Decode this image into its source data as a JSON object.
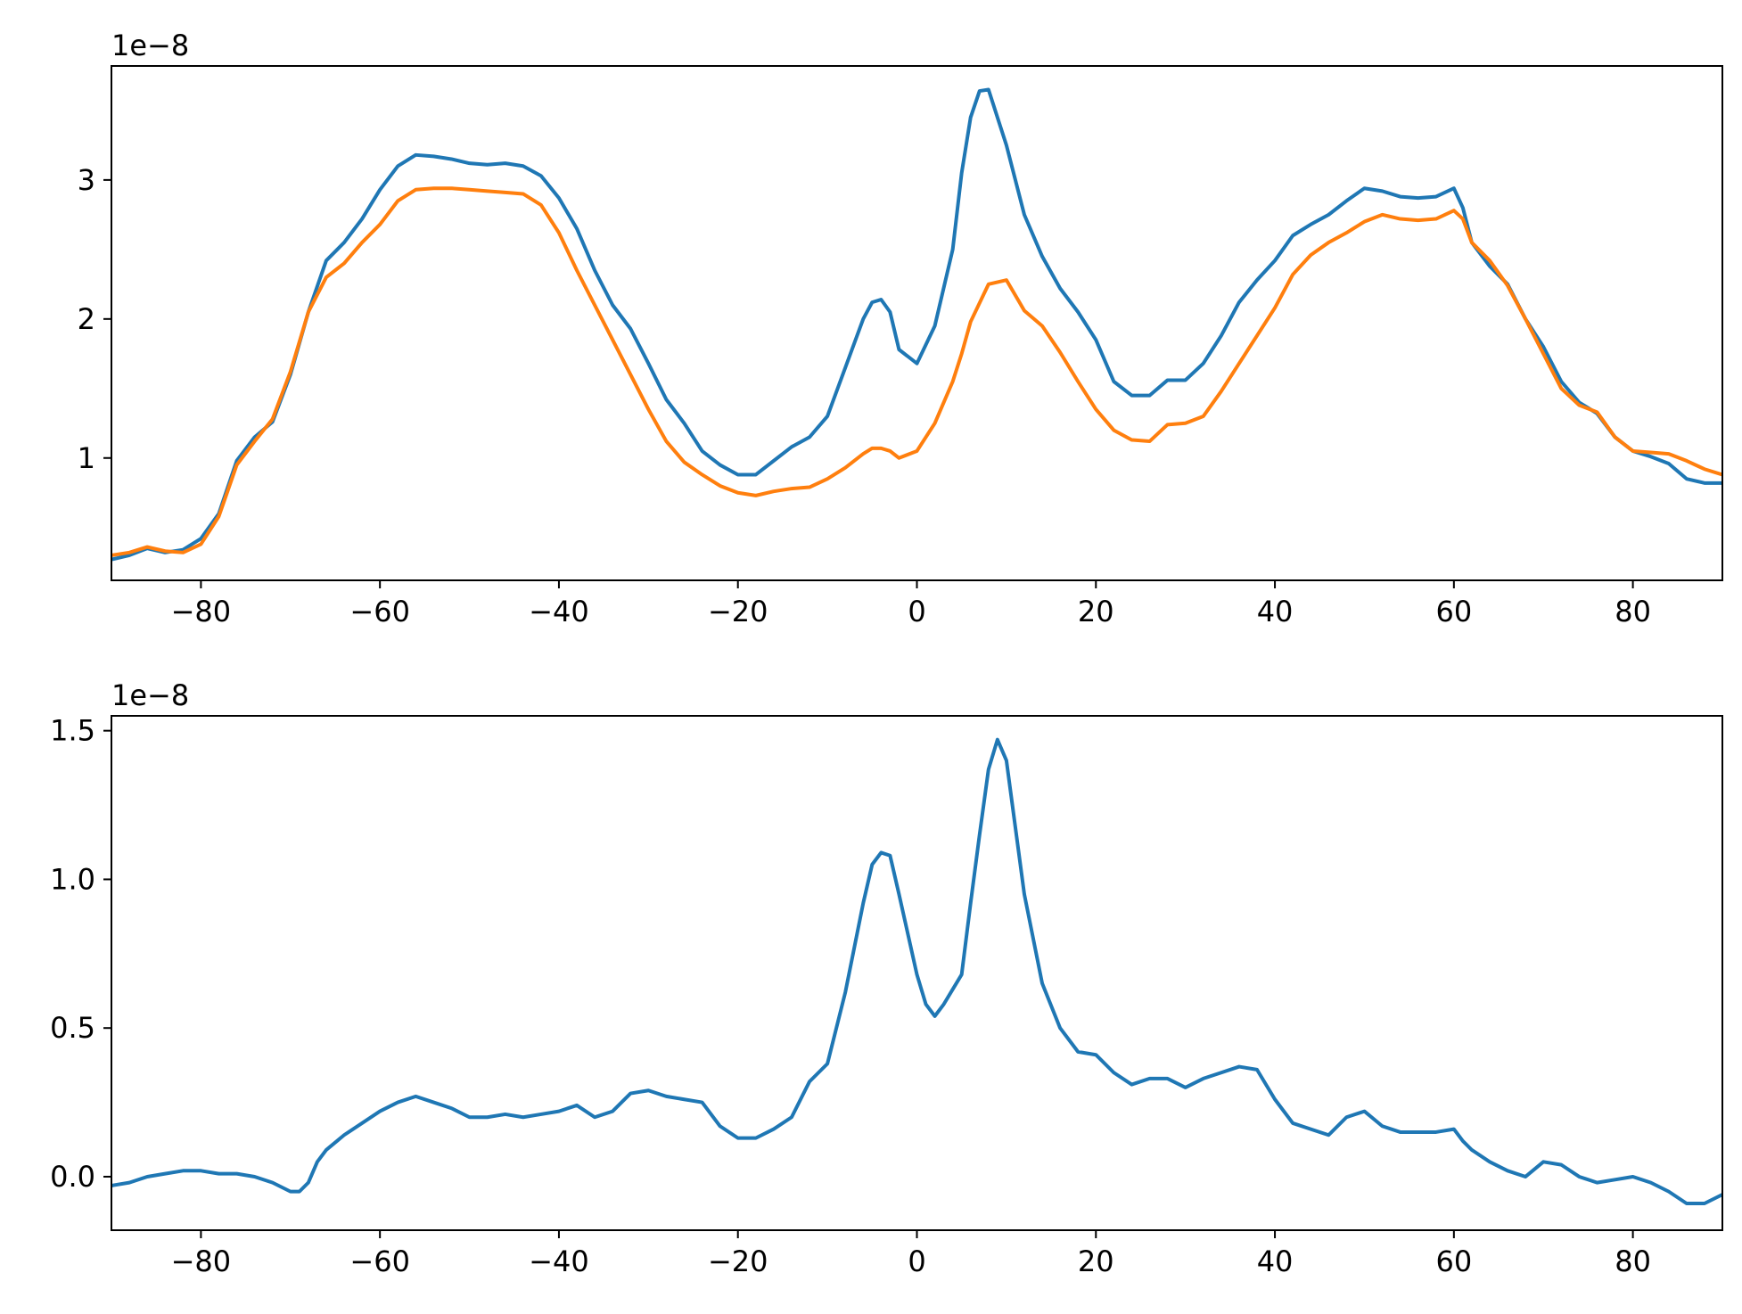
{
  "chart_data": [
    {
      "type": "line",
      "title": "",
      "xlabel": "",
      "ylabel": "",
      "y_offset_text": "1e−8",
      "y_scale": 1e-08,
      "xlim": [
        -90,
        90
      ],
      "ylim": [
        0.12,
        3.82
      ],
      "x_ticks": [
        -80,
        -60,
        -40,
        -20,
        0,
        20,
        40,
        60,
        80
      ],
      "x_tick_labels": [
        "−80",
        "−60",
        "−40",
        "−20",
        "0",
        "20",
        "40",
        "60",
        "80"
      ],
      "y_ticks": [
        1,
        2,
        3
      ],
      "y_tick_labels": [
        "1",
        "2",
        "3"
      ],
      "grid": false,
      "legend": "none",
      "colors": [
        "#1f77b4",
        "#ff7f0e"
      ],
      "series": [
        {
          "x": [
            -90,
            -88,
            -86,
            -84,
            -82,
            -80,
            -78,
            -76,
            -74,
            -72,
            -70,
            -68,
            -66,
            -64,
            -62,
            -60,
            -58,
            -56,
            -54,
            -52,
            -50,
            -48,
            -46,
            -44,
            -42,
            -40,
            -38,
            -36,
            -34,
            -32,
            -30,
            -28,
            -26,
            -24,
            -22,
            -20,
            -18,
            -16,
            -14,
            -12,
            -10,
            -8,
            -6,
            -5,
            -4,
            -3,
            -2,
            0,
            2,
            4,
            5,
            6,
            7,
            8,
            9,
            10,
            12,
            14,
            16,
            18,
            20,
            22,
            24,
            26,
            28,
            30,
            32,
            34,
            36,
            38,
            40,
            42,
            44,
            46,
            48,
            50,
            52,
            54,
            56,
            58,
            60,
            61,
            62,
            64,
            66,
            68,
            70,
            72,
            74,
            76,
            78,
            80,
            82,
            84,
            86,
            88,
            90
          ],
          "y": [
            0.27,
            0.3,
            0.35,
            0.32,
            0.34,
            0.42,
            0.6,
            0.98,
            1.15,
            1.26,
            1.6,
            2.05,
            2.42,
            2.55,
            2.72,
            2.93,
            3.1,
            3.18,
            3.17,
            3.15,
            3.12,
            3.11,
            3.12,
            3.1,
            3.03,
            2.87,
            2.65,
            2.35,
            2.1,
            1.93,
            1.68,
            1.42,
            1.25,
            1.05,
            0.95,
            0.88,
            0.88,
            0.98,
            1.08,
            1.15,
            1.3,
            1.65,
            2.0,
            2.12,
            2.14,
            2.05,
            1.78,
            1.68,
            1.95,
            2.5,
            3.05,
            3.45,
            3.64,
            3.65,
            3.45,
            3.25,
            2.75,
            2.45,
            2.22,
            2.05,
            1.85,
            1.55,
            1.45,
            1.45,
            1.56,
            1.56,
            1.68,
            1.88,
            2.12,
            2.28,
            2.42,
            2.6,
            2.68,
            2.75,
            2.85,
            2.94,
            2.92,
            2.88,
            2.87,
            2.88,
            2.94,
            2.8,
            2.55,
            2.38,
            2.25,
            2.0,
            1.8,
            1.55,
            1.4,
            1.32,
            1.15,
            1.05,
            1.01,
            0.96,
            0.85,
            0.82,
            0.82
          ]
        },
        {
          "x": [
            -90,
            -88,
            -86,
            -84,
            -82,
            -80,
            -78,
            -76,
            -74,
            -72,
            -70,
            -68,
            -66,
            -64,
            -62,
            -60,
            -58,
            -56,
            -54,
            -52,
            -50,
            -48,
            -46,
            -44,
            -42,
            -40,
            -38,
            -36,
            -34,
            -32,
            -30,
            -28,
            -26,
            -24,
            -22,
            -20,
            -18,
            -16,
            -14,
            -12,
            -10,
            -8,
            -6,
            -5,
            -4,
            -3,
            -2,
            0,
            2,
            4,
            5,
            6,
            8,
            10,
            12,
            14,
            16,
            18,
            20,
            22,
            24,
            26,
            28,
            30,
            32,
            34,
            36,
            38,
            40,
            42,
            44,
            46,
            48,
            50,
            52,
            54,
            56,
            58,
            60,
            61,
            62,
            64,
            66,
            68,
            70,
            72,
            74,
            76,
            78,
            80,
            82,
            84,
            86,
            88,
            90
          ],
          "y": [
            0.3,
            0.32,
            0.36,
            0.33,
            0.32,
            0.38,
            0.58,
            0.95,
            1.12,
            1.28,
            1.62,
            2.05,
            2.3,
            2.4,
            2.55,
            2.68,
            2.85,
            2.93,
            2.94,
            2.94,
            2.93,
            2.92,
            2.91,
            2.9,
            2.82,
            2.62,
            2.35,
            2.1,
            1.85,
            1.6,
            1.35,
            1.12,
            0.97,
            0.88,
            0.8,
            0.75,
            0.73,
            0.76,
            0.78,
            0.79,
            0.85,
            0.93,
            1.03,
            1.07,
            1.07,
            1.05,
            1.0,
            1.05,
            1.25,
            1.55,
            1.75,
            1.98,
            2.25,
            2.28,
            2.06,
            1.95,
            1.76,
            1.55,
            1.35,
            1.2,
            1.13,
            1.12,
            1.24,
            1.25,
            1.3,
            1.48,
            1.68,
            1.88,
            2.08,
            2.32,
            2.46,
            2.55,
            2.62,
            2.7,
            2.75,
            2.72,
            2.71,
            2.72,
            2.78,
            2.72,
            2.55,
            2.42,
            2.24,
            2.0,
            1.75,
            1.5,
            1.38,
            1.33,
            1.15,
            1.05,
            1.04,
            1.03,
            0.98,
            0.92,
            0.88
          ]
        }
      ]
    },
    {
      "type": "line",
      "title": "",
      "xlabel": "",
      "ylabel": "",
      "y_offset_text": "1e−8",
      "y_scale": 1e-08,
      "xlim": [
        -90,
        90
      ],
      "ylim": [
        -0.18,
        1.55
      ],
      "x_ticks": [
        -80,
        -60,
        -40,
        -20,
        0,
        20,
        40,
        60,
        80
      ],
      "x_tick_labels": [
        "−80",
        "−60",
        "−40",
        "−20",
        "0",
        "20",
        "40",
        "60",
        "80"
      ],
      "y_ticks": [
        0.0,
        0.5,
        1.0,
        1.5
      ],
      "y_tick_labels": [
        "0.0",
        "0.5",
        "1.0",
        "1.5"
      ],
      "grid": false,
      "legend": "none",
      "colors": [
        "#1f77b4"
      ],
      "series": [
        {
          "x": [
            -90,
            -88,
            -86,
            -84,
            -82,
            -80,
            -78,
            -76,
            -74,
            -72,
            -70,
            -69,
            -68,
            -67,
            -66,
            -64,
            -62,
            -60,
            -58,
            -56,
            -54,
            -52,
            -50,
            -48,
            -46,
            -44,
            -42,
            -40,
            -38,
            -36,
            -34,
            -32,
            -30,
            -28,
            -26,
            -24,
            -22,
            -20,
            -18,
            -16,
            -14,
            -12,
            -10,
            -8,
            -6,
            -5,
            -4,
            -3,
            -2,
            0,
            1,
            2,
            3,
            4,
            5,
            6,
            7,
            8,
            9,
            10,
            12,
            14,
            16,
            18,
            20,
            22,
            24,
            26,
            28,
            30,
            32,
            34,
            36,
            38,
            40,
            42,
            44,
            46,
            48,
            50,
            52,
            54,
            56,
            58,
            60,
            61,
            62,
            64,
            66,
            68,
            70,
            72,
            74,
            76,
            78,
            80,
            82,
            84,
            86,
            88,
            90
          ],
          "y": [
            -0.03,
            -0.02,
            0.0,
            0.01,
            0.02,
            0.02,
            0.01,
            0.01,
            0.0,
            -0.02,
            -0.05,
            -0.05,
            -0.02,
            0.05,
            0.09,
            0.14,
            0.18,
            0.22,
            0.25,
            0.27,
            0.25,
            0.23,
            0.2,
            0.2,
            0.21,
            0.2,
            0.21,
            0.22,
            0.24,
            0.2,
            0.22,
            0.28,
            0.29,
            0.27,
            0.26,
            0.25,
            0.17,
            0.13,
            0.13,
            0.16,
            0.2,
            0.32,
            0.38,
            0.62,
            0.92,
            1.05,
            1.09,
            1.08,
            0.95,
            0.68,
            0.58,
            0.54,
            0.58,
            0.63,
            0.68,
            0.92,
            1.15,
            1.37,
            1.47,
            1.4,
            0.95,
            0.65,
            0.5,
            0.42,
            0.41,
            0.35,
            0.31,
            0.33,
            0.33,
            0.3,
            0.33,
            0.35,
            0.37,
            0.36,
            0.26,
            0.18,
            0.16,
            0.14,
            0.2,
            0.22,
            0.17,
            0.15,
            0.15,
            0.15,
            0.16,
            0.12,
            0.09,
            0.05,
            0.02,
            0.0,
            0.05,
            0.04,
            0.0,
            -0.02,
            -0.01,
            0.0,
            -0.02,
            -0.05,
            -0.09,
            -0.09,
            -0.06
          ]
        }
      ]
    }
  ]
}
